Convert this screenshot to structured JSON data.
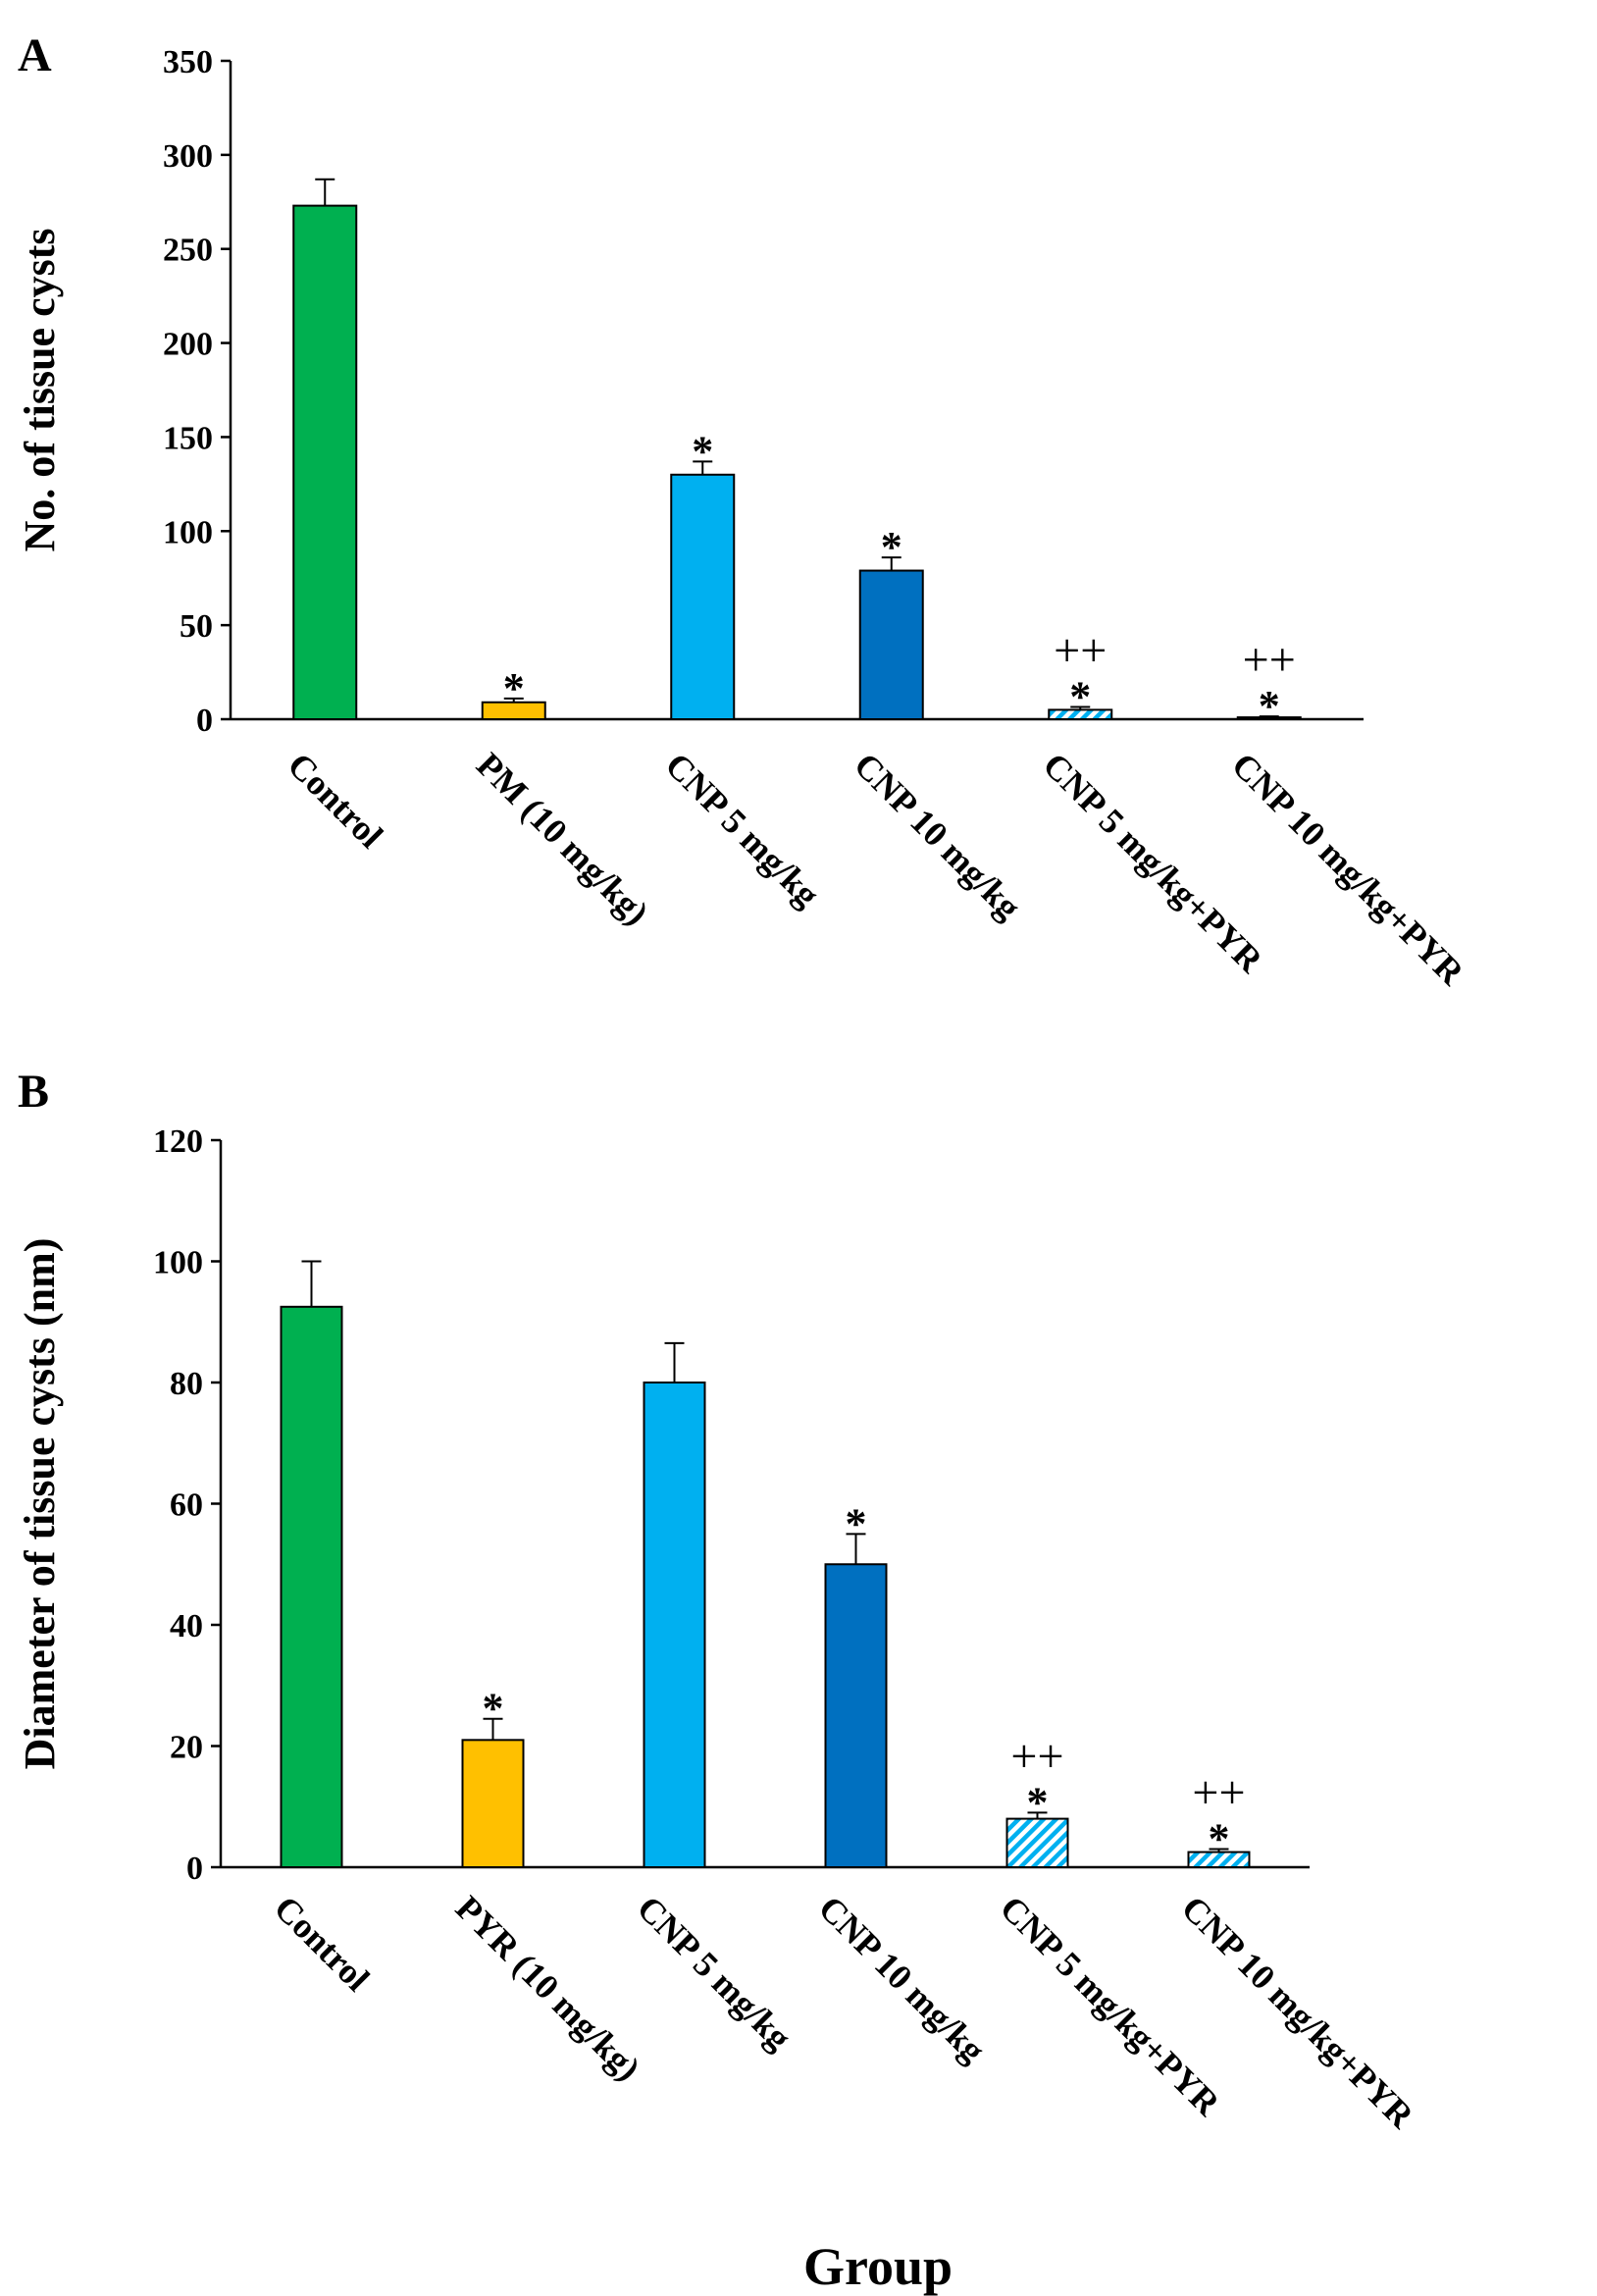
{
  "figure": {
    "xlabel": "Group",
    "colors": {
      "control": "#00b050",
      "standard": "#ffc000",
      "cnp5": "#00b0f0",
      "cnp10": "#0070c0",
      "hatch": "#00b0f0",
      "axis": "#000000"
    }
  },
  "chart_data": [
    {
      "type": "bar",
      "panel": "A",
      "ylabel": "No. of tissue cysts",
      "ylim": [
        0,
        350
      ],
      "yticks": [
        0,
        50,
        100,
        150,
        200,
        250,
        300,
        350
      ],
      "categories": [
        "Control",
        "PM (10 mg/kg)",
        "CNP 5 mg/kg",
        "CNP 10 mg/kg",
        "CNP 5 mg/kg+PYR",
        "CNP 10 mg/kg+PYR"
      ],
      "values": [
        273,
        9,
        130,
        79,
        5,
        1
      ],
      "errors": [
        14,
        2,
        7,
        7,
        1.5,
        0.5
      ],
      "styles": [
        "control",
        "standard",
        "cnp5",
        "cnp10",
        "hatch",
        "hatch"
      ],
      "sig_star": [
        "",
        "*",
        "*",
        "*",
        "*",
        "*"
      ],
      "sig_plus": [
        "",
        "",
        "",
        "",
        "++",
        "++"
      ]
    },
    {
      "type": "bar",
      "panel": "B",
      "ylabel": "Diameter of tissue cysts (nm)",
      "ylim": [
        0,
        120
      ],
      "yticks": [
        0,
        20,
        40,
        60,
        80,
        100,
        120
      ],
      "categories": [
        "Control",
        "PYR (10 mg/kg)",
        "CNP 5 mg/kg",
        "CNP 10 mg/kg",
        "CNP 5 mg/kg+PYR",
        "CNP 10 mg/kg+PYR"
      ],
      "values": [
        92.5,
        21,
        80,
        50,
        8,
        2.5
      ],
      "errors": [
        7.5,
        3.5,
        6.5,
        5,
        1,
        0.5
      ],
      "styles": [
        "control",
        "standard",
        "cnp5",
        "cnp10",
        "hatch",
        "hatch"
      ],
      "sig_star": [
        "",
        "*",
        "",
        "*",
        "*",
        "*"
      ],
      "sig_plus": [
        "",
        "",
        "",
        "",
        "++",
        "++"
      ]
    }
  ]
}
